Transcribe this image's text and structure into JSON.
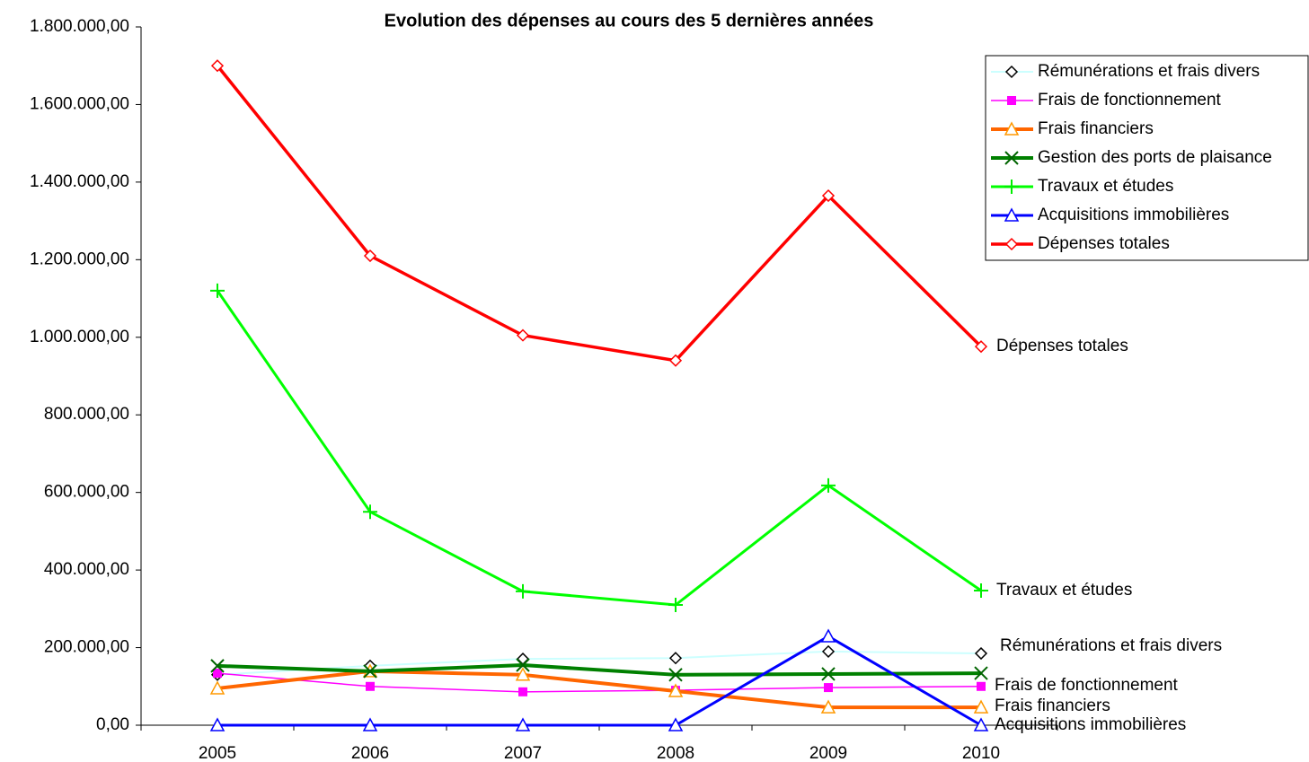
{
  "chart_data": {
    "type": "line",
    "title": "Evolution des dépenses au cours des 5 dernières années",
    "categories": [
      "2005",
      "2006",
      "2007",
      "2008",
      "2009",
      "2010"
    ],
    "ylim": [
      0,
      1800000
    ],
    "yticks": [
      {
        "value": 0,
        "label": "0,00"
      },
      {
        "value": 200000,
        "label": "200.000,00"
      },
      {
        "value": 400000,
        "label": "400.000,00"
      },
      {
        "value": 600000,
        "label": "600.000,00"
      },
      {
        "value": 800000,
        "label": "800.000,00"
      },
      {
        "value": 1000000,
        "label": "1.000.000,00"
      },
      {
        "value": 1200000,
        "label": "1.200.000,00"
      },
      {
        "value": 1400000,
        "label": "1.400.000,00"
      },
      {
        "value": 1600000,
        "label": "1.600.000,00"
      },
      {
        "value": 1800000,
        "label": "1.800.000,00"
      }
    ],
    "grid": false,
    "legend": "upper right",
    "series": [
      {
        "name": "Rémunérations et frais divers",
        "color": "#ccffff",
        "marker": "diamond",
        "marker_color": "#000000",
        "values": [
          130000,
          153000,
          171000,
          173000,
          190000,
          185000
        ]
      },
      {
        "name": "Frais de fonctionnement",
        "color": "#ff00ff",
        "marker": "square",
        "marker_color": "#ff00ff",
        "values": [
          134000,
          100000,
          86000,
          90000,
          97000,
          100000
        ]
      },
      {
        "name": "Frais financiers",
        "color": "#ff6600",
        "marker": "triangle",
        "marker_color": "#ff9900",
        "values": [
          95000,
          139000,
          130000,
          88000,
          46000,
          46000
        ]
      },
      {
        "name": "Gestion des ports de plaisance",
        "color": "#008000",
        "marker": "x",
        "marker_color": "#006400",
        "values": [
          153000,
          139000,
          155000,
          130000,
          132000,
          134000
        ]
      },
      {
        "name": "Travaux et études",
        "color": "#00ff00",
        "marker": "plus",
        "marker_color": "#00ee00",
        "values": [
          1120000,
          550000,
          345000,
          310000,
          618000,
          347000
        ]
      },
      {
        "name": "Acquisitions immobilières",
        "color": "#0000ff",
        "marker": "triangle",
        "marker_color": "#0000ff",
        "values": [
          0,
          0,
          0,
          0,
          229000,
          0
        ]
      },
      {
        "name": "Dépenses totales",
        "color": "#ff0000",
        "marker": "diamond",
        "marker_color": "#ff0000",
        "values": [
          1700000,
          1210000,
          1005000,
          940000,
          1365000,
          976000
        ]
      }
    ]
  }
}
